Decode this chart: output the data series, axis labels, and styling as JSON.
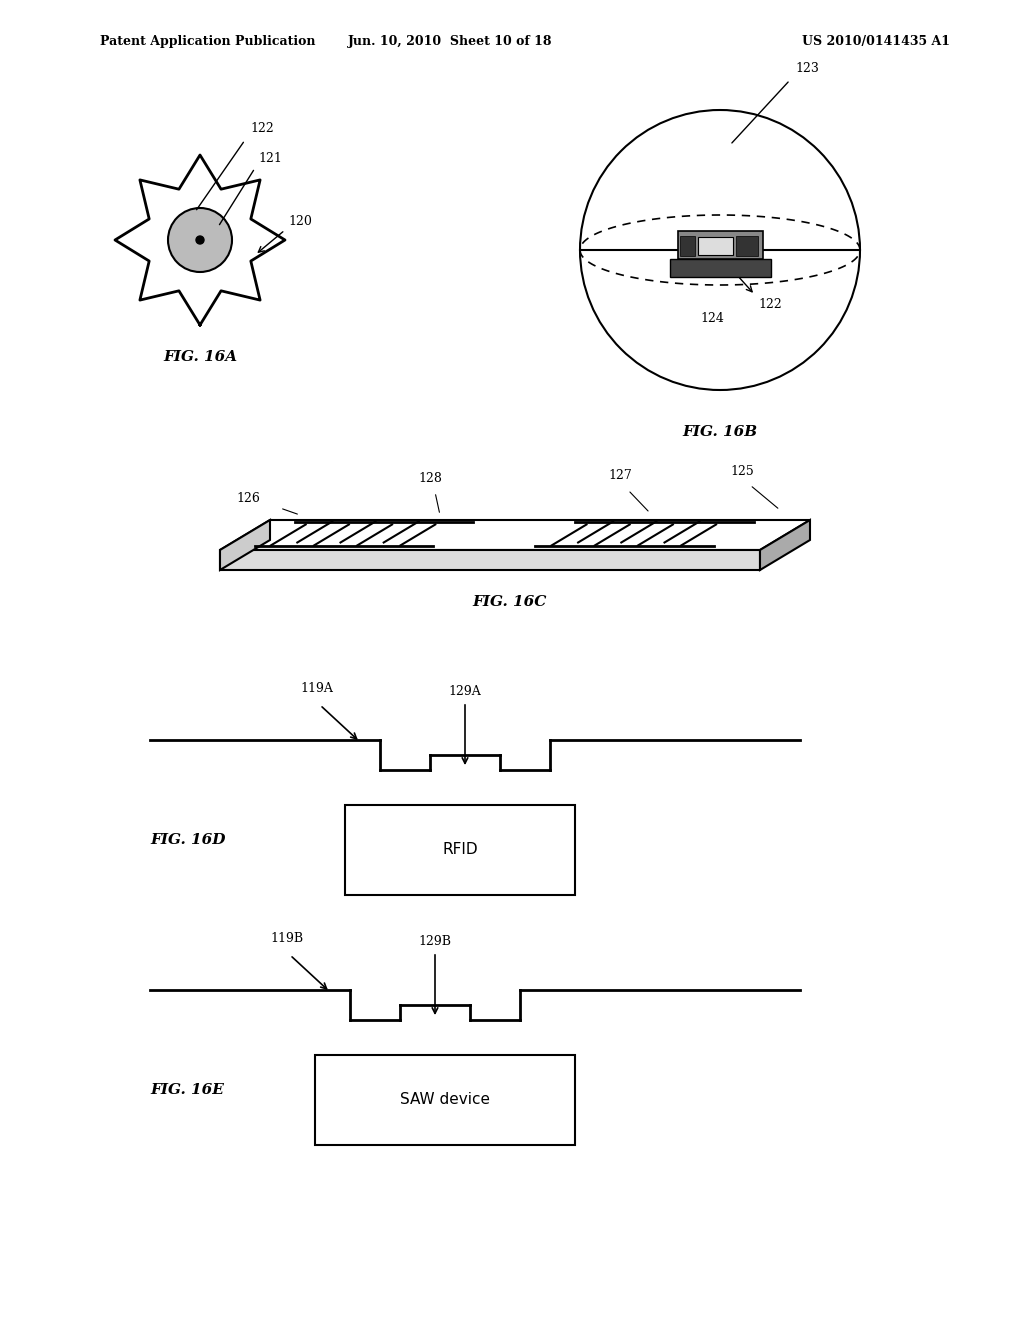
{
  "background_color": "#ffffff",
  "header_left": "Patent Application Publication",
  "header_mid": "Jun. 10, 2010  Sheet 10 of 18",
  "header_right": "US 2010/0141435 A1",
  "fig16a_label": "FIG. 16A",
  "fig16b_label": "FIG. 16B",
  "fig16c_label": "FIG. 16C",
  "fig16d_label": "FIG. 16D",
  "fig16e_label": "FIG. 16E",
  "rfid_label": "RFID",
  "saw_label": "SAW device",
  "ref_120": "120",
  "ref_121": "121",
  "ref_122a": "122",
  "ref_122b": "122",
  "ref_123": "123",
  "ref_124": "124",
  "ref_125": "125",
  "ref_126": "126",
  "ref_127": "127",
  "ref_128": "128",
  "ref_119a": "119A",
  "ref_129a": "129A",
  "ref_119b": "119B",
  "ref_129b": "129B"
}
